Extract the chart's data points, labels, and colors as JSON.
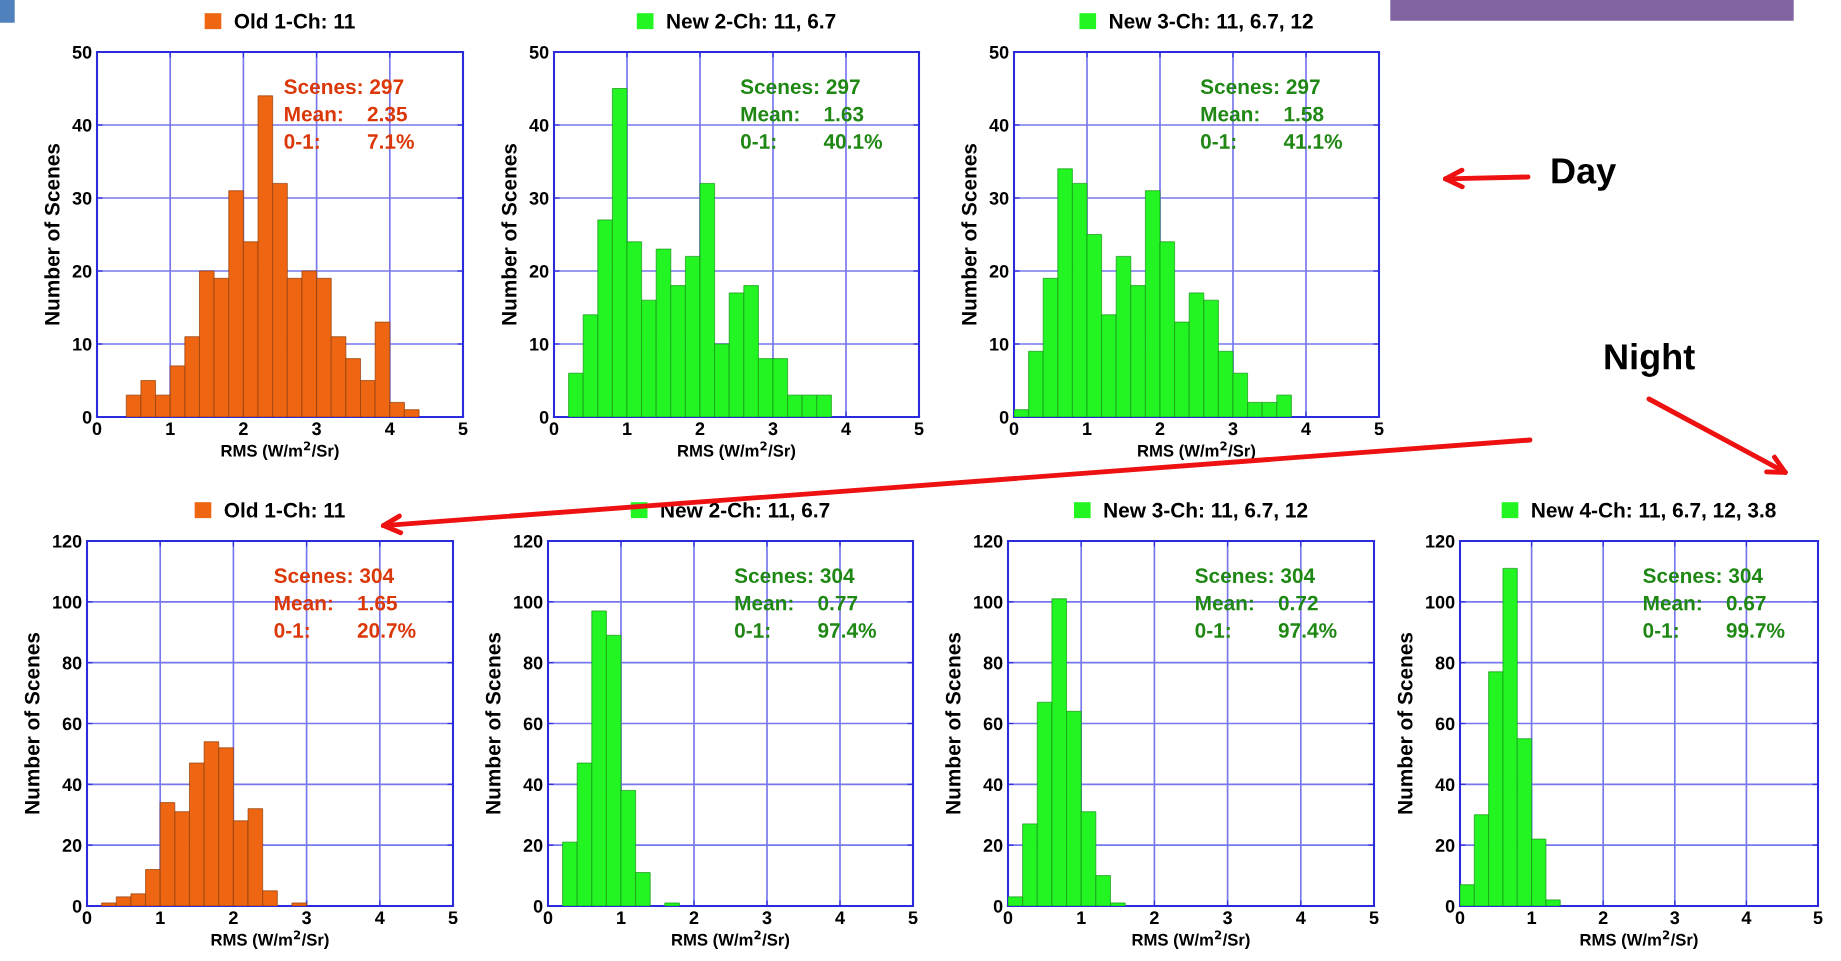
{
  "chart_data": [
    {
      "type": "histogram",
      "xlabel": "RMS (W/m$^{2}$/Sr)",
      "ylabel": "Number of Scenes",
      "legend": "top",
      "grid": true,
      "xlim": [
        0,
        5
      ],
      "xticks": [
        0,
        1,
        2,
        3,
        4,
        5
      ],
      "ylim": [
        0,
        50
      ],
      "yticks": [
        0,
        10,
        20,
        30,
        40,
        50
      ],
      "bins": [
        0.4,
        0.6,
        0.8,
        1.0,
        1.2,
        1.4,
        1.6,
        1.8,
        2.0,
        2.2,
        2.4,
        2.6,
        2.8,
        3.0,
        3.2,
        3.4,
        3.6,
        3.8,
        4.0,
        4.2,
        4.4
      ],
      "series": [
        {
          "name": "Old 1-Ch: 11",
          "color": "#ee6611",
          "values": [
            3,
            5,
            3,
            7,
            11,
            20,
            19,
            31,
            24,
            44,
            32,
            19,
            20,
            19,
            11,
            8,
            5,
            13,
            2,
            1
          ]
        }
      ],
      "annotations": [
        "Scenes: 297",
        "Mean:    2.35",
        "0-1:        7.1%"
      ]
    },
    {
      "type": "histogram",
      "xlabel": "RMS (W/m$^{2}$/Sr)",
      "ylabel": "Number of Scenes",
      "legend": "top",
      "grid": true,
      "xlim": [
        0,
        5
      ],
      "xticks": [
        0,
        1,
        2,
        3,
        4,
        5
      ],
      "ylim": [
        0,
        50
      ],
      "yticks": [
        0,
        10,
        20,
        30,
        40,
        50
      ],
      "bins": [
        0.2,
        0.4,
        0.6,
        0.8,
        1.0,
        1.2,
        1.4,
        1.6,
        1.8,
        2.0,
        2.2,
        2.4,
        2.6,
        2.8,
        3.0,
        3.2,
        3.4,
        3.6,
        3.8
      ],
      "series": [
        {
          "name": "New 2-Ch: 11, 6.7",
          "color": "#22f522",
          "values": [
            6,
            14,
            27,
            45,
            24,
            16,
            23,
            18,
            22,
            32,
            10,
            17,
            18,
            8,
            8,
            3,
            3,
            3
          ]
        }
      ],
      "annotations": [
        "Scenes: 297",
        "Mean:    1.63",
        "0-1:        40.1%"
      ]
    },
    {
      "type": "histogram",
      "xlabel": "RMS (W/m$^{2}$/Sr)",
      "ylabel": "Number of Scenes",
      "legend": "top",
      "grid": true,
      "xlim": [
        0,
        5
      ],
      "xticks": [
        0,
        1,
        2,
        3,
        4,
        5
      ],
      "ylim": [
        0,
        50
      ],
      "yticks": [
        0,
        10,
        20,
        30,
        40,
        50
      ],
      "bins": [
        0.0,
        0.2,
        0.4,
        0.6,
        0.8,
        1.0,
        1.2,
        1.4,
        1.6,
        1.8,
        2.0,
        2.2,
        2.4,
        2.6,
        2.8,
        3.0,
        3.2,
        3.4,
        3.6,
        3.8
      ],
      "series": [
        {
          "name": "New 3-Ch: 11, 6.7, 12",
          "color": "#22f522",
          "values": [
            1,
            9,
            19,
            34,
            32,
            25,
            14,
            22,
            18,
            31,
            24,
            13,
            17,
            16,
            9,
            6,
            2,
            2,
            3
          ]
        }
      ],
      "annotations": [
        "Scenes: 297",
        "Mean:    1.58",
        "0-1:        41.1%",
        "Day"
      ]
    },
    {
      "type": "histogram",
      "xlabel": "RMS (W/m$^{2}$/Sr)",
      "ylabel": "Number of Scenes",
      "legend": "top",
      "grid": true,
      "xlim": [
        0,
        5
      ],
      "xticks": [
        0,
        1,
        2,
        3,
        4,
        5
      ],
      "ylim": [
        0,
        120
      ],
      "yticks": [
        0,
        20,
        40,
        60,
        80,
        100,
        120
      ],
      "bins": [
        0.2,
        0.4,
        0.6,
        0.8,
        1.0,
        1.2,
        1.4,
        1.6,
        1.8,
        2.0,
        2.2,
        2.4,
        2.6,
        2.8,
        3.0
      ],
      "series": [
        {
          "name": "Old 1-Ch: 11",
          "color": "#ee6611",
          "values": [
            1,
            3,
            4,
            12,
            34,
            31,
            47,
            54,
            52,
            28,
            32,
            5,
            0,
            1
          ]
        }
      ],
      "annotations": [
        "Scenes: 304",
        "Mean:    1.65",
        "0-1:        20.7%",
        "Night"
      ]
    },
    {
      "type": "histogram",
      "xlabel": "RMS (W/m$^{2}$/Sr)",
      "ylabel": "Number of Scenes",
      "legend": "top",
      "grid": true,
      "xlim": [
        0,
        5
      ],
      "xticks": [
        0,
        1,
        2,
        3,
        4,
        5
      ],
      "ylim": [
        0,
        120
      ],
      "yticks": [
        0,
        20,
        40,
        60,
        80,
        100,
        120
      ],
      "bins": [
        0.2,
        0.4,
        0.6,
        0.8,
        1.0,
        1.2,
        1.4,
        1.6,
        1.8
      ],
      "series": [
        {
          "name": "New 2-Ch: 11, 6.7",
          "color": "#22f522",
          "values": [
            21,
            47,
            97,
            89,
            38,
            11,
            0,
            1
          ]
        }
      ],
      "annotations": [
        "Scenes: 304",
        "Mean:    0.77",
        "0-1:        97.4%"
      ]
    },
    {
      "type": "histogram",
      "xlabel": "RMS (W/m$^{2}$/Sr)",
      "ylabel": "Number of Scenes",
      "legend": "top",
      "grid": true,
      "xlim": [
        0,
        5
      ],
      "xticks": [
        0,
        1,
        2,
        3,
        4,
        5
      ],
      "ylim": [
        0,
        120
      ],
      "yticks": [
        0,
        20,
        40,
        60,
        80,
        100,
        120
      ],
      "bins": [
        0.0,
        0.2,
        0.4,
        0.6,
        0.8,
        1.0,
        1.2,
        1.4,
        1.6
      ],
      "series": [
        {
          "name": "New 3-Ch: 11, 6.7, 12",
          "color": "#22f522",
          "values": [
            3,
            27,
            67,
            101,
            64,
            31,
            10,
            1
          ]
        }
      ],
      "annotations": [
        "Scenes: 304",
        "Mean:    0.72",
        "0-1:        97.4%"
      ]
    },
    {
      "type": "histogram",
      "xlabel": "RMS (W/m$^{2}$/Sr)",
      "ylabel": "Number of Scenes",
      "legend": "top",
      "grid": true,
      "xlim": [
        0,
        5
      ],
      "xticks": [
        0,
        1,
        2,
        3,
        4,
        5
      ],
      "ylim": [
        0,
        120
      ],
      "yticks": [
        0,
        20,
        40,
        60,
        80,
        100,
        120
      ],
      "bins": [
        0.0,
        0.2,
        0.4,
        0.6,
        0.8,
        1.0,
        1.2,
        1.4
      ],
      "series": [
        {
          "name": "New 4-Ch: 11, 6.7, 12, 3.8",
          "color": "#22f522",
          "values": [
            7,
            30,
            77,
            111,
            55,
            22,
            2
          ]
        }
      ],
      "annotations": [
        "Scenes: 304",
        "Mean:    0.67",
        "0-1:        99.7%"
      ]
    }
  ]
}
